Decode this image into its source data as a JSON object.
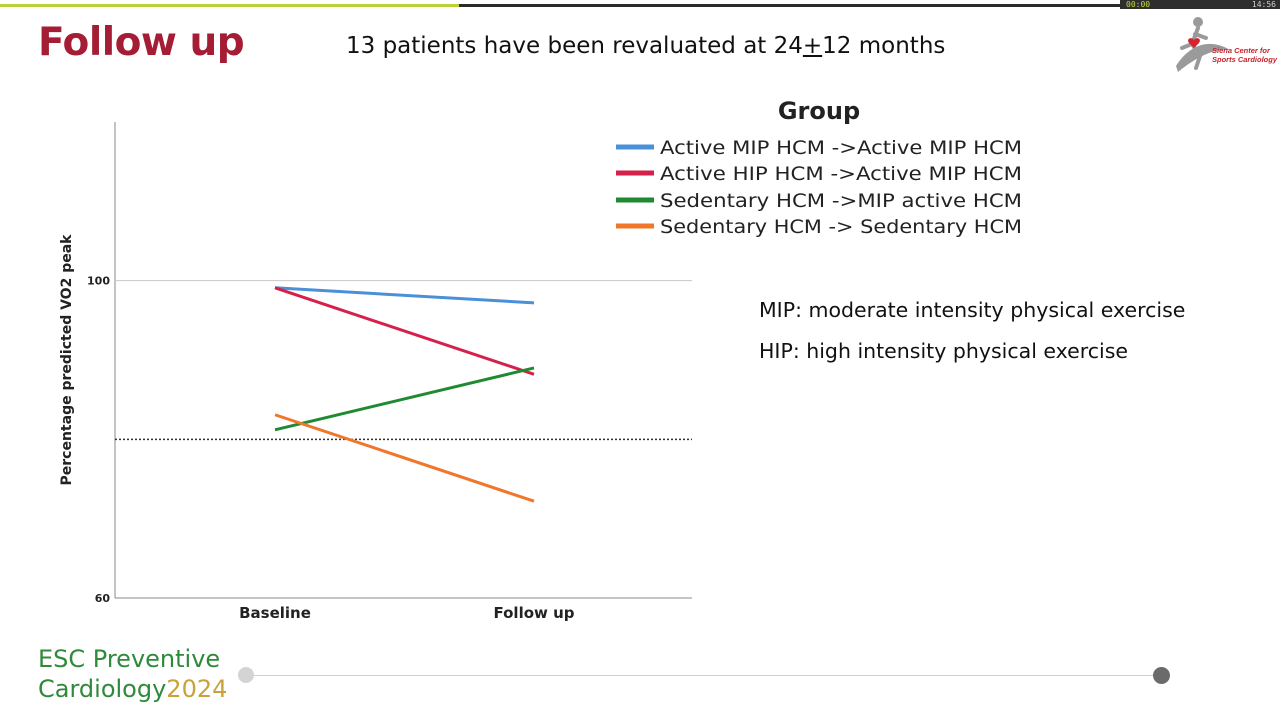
{
  "player": {
    "progress_fraction": 0.41,
    "elapsed": "00:00",
    "total": "14:56",
    "colors": {
      "fill": "#b9d23a",
      "track": "#2b2b2b"
    }
  },
  "slide": {
    "title": "Follow up",
    "subtitle_pre": "13 patients have been revaluated at 24",
    "subtitle_pm": "+",
    "subtitle_post": "12 months",
    "notes": [
      "MIP: moderate intensity physical exercise",
      "HIP: high intensity physical exercise"
    ],
    "logo": {
      "line1": "Siena Center for",
      "line2": "Sports Cardiology",
      "icon": "runner-heart-icon"
    },
    "brand": {
      "line1": "ESC Preventive",
      "line2": "Cardiology",
      "year": "2024"
    },
    "colors": {
      "title": "#a41d35",
      "brand_green": "#2f8a3a",
      "brand_gold": "#c9a13a"
    }
  },
  "chart_data": {
    "type": "line",
    "title": "",
    "legend_title": "Group",
    "legend_position": "top-right",
    "xlabel": "",
    "ylabel": "Percentage predicted VO2 peak",
    "categories": [
      "Baseline",
      "Follow up"
    ],
    "ylim": [
      60,
      120
    ],
    "yticks": [
      60,
      100
    ],
    "reference_line": 80,
    "grid": false,
    "series": [
      {
        "name": "Active MIP HCM ->Active MIP HCM",
        "color": "#4a90d9",
        "values": [
          99.1,
          97.2
        ]
      },
      {
        "name": "Active HIP HCM ->Active MIP HCM",
        "color": "#d6204a",
        "values": [
          99.1,
          88.2
        ]
      },
      {
        "name": "Sedentary HCM ->MIP active HCM",
        "color": "#1f8a32",
        "values": [
          81.2,
          89.0
        ]
      },
      {
        "name": "Sedentary HCM -> Sedentary HCM",
        "color": "#f0772a",
        "values": [
          83.1,
          72.2
        ]
      }
    ]
  }
}
